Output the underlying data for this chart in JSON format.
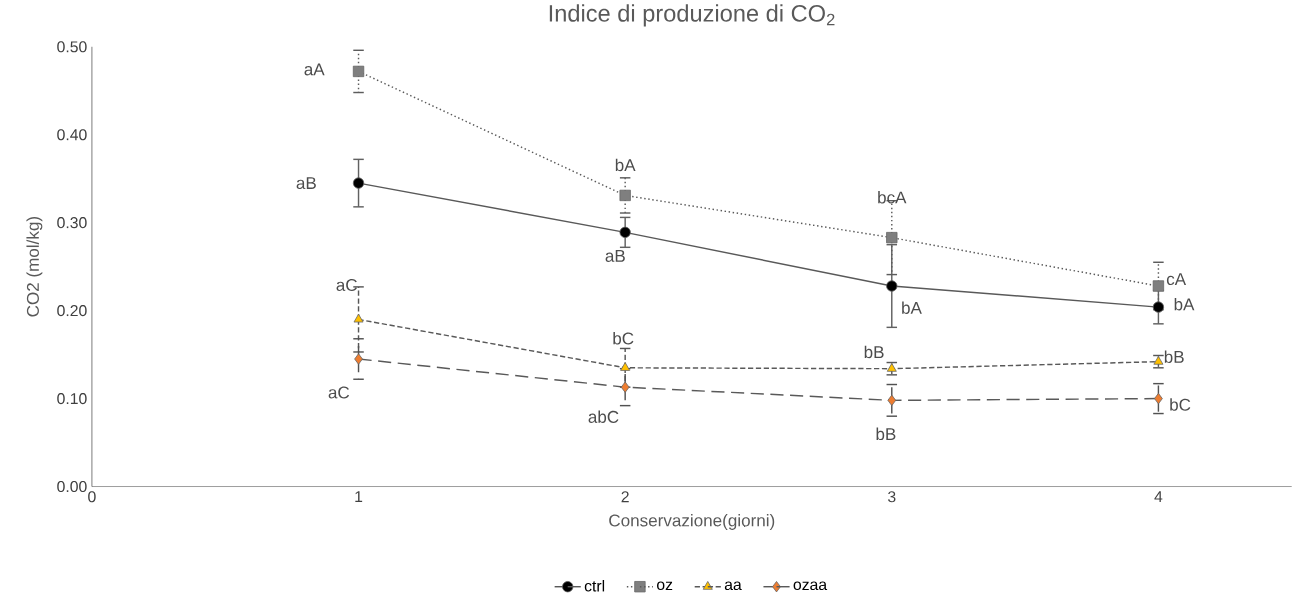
{
  "chart_data": {
    "type": "line",
    "title": "Indice di produzione di CO$_{2}$",
    "xlabel": "Conservazione(giorni)",
    "ylabel": "CO2 (mol/kg)",
    "x": [
      1,
      2,
      3,
      4
    ],
    "xlim": [
      0,
      4.5
    ],
    "xticks": [
      0,
      1,
      2,
      3,
      4
    ],
    "ylim": [
      0,
      0.5
    ],
    "yticks": [
      {
        "value": 0,
        "label": "0.00"
      },
      {
        "value": 0.1,
        "label": "0.10"
      },
      {
        "value": 0.2,
        "label": "0.20"
      },
      {
        "value": 0.3,
        "label": "0.30"
      },
      {
        "value": 0.4,
        "label": "0.40"
      },
      {
        "value": 0.5,
        "label": "0.50"
      }
    ],
    "legend": "bottom",
    "grid": false,
    "series": [
      {
        "name": "ctrl",
        "color": "#000000",
        "marker": "circle",
        "line_style": "solid",
        "values": [
          0.345,
          0.289,
          0.228,
          0.204
        ],
        "errors": [
          0.027,
          0.017,
          0.047,
          0.019
        ]
      },
      {
        "name": "oz",
        "color": "#7f7f7f",
        "marker": "square",
        "line_style": "dotted",
        "values": [
          0.472,
          0.331,
          0.283,
          0.228
        ],
        "errors": [
          0.024,
          0.02,
          0.042,
          0.027
        ]
      },
      {
        "name": "aa",
        "color": "#ffc000",
        "marker": "triangle",
        "line_style": "dashed",
        "values": [
          0.19,
          0.135,
          0.134,
          0.142
        ],
        "errors": [
          0.037,
          0.022,
          0.007,
          0.007
        ]
      },
      {
        "name": "ozaa",
        "color": "#ed7d31",
        "marker": "diamond",
        "line_style": "dashed",
        "values": [
          0.145,
          0.113,
          0.098,
          0.1
        ],
        "errors": [
          0.023,
          0.021,
          0.018,
          0.017
        ]
      }
    ],
    "annotations": [
      "aB",
      "aB",
      "bA",
      "bA",
      "aA",
      "bA",
      "bcA",
      "cA",
      "aC",
      "bC",
      "bB",
      "bB",
      "aC",
      "abC",
      "bB",
      "bC"
    ]
  }
}
